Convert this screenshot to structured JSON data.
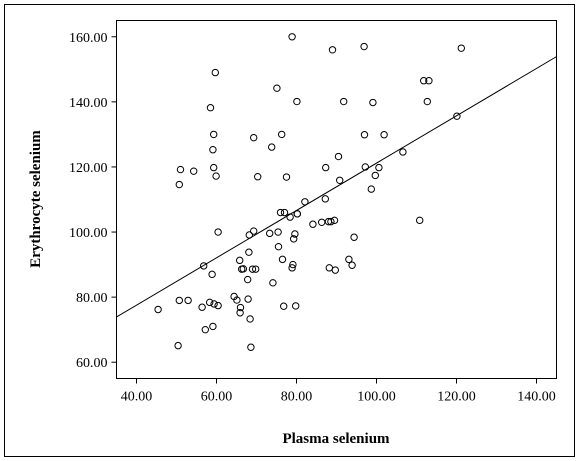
{
  "chart_data": {
    "type": "scatter",
    "title": "",
    "xlabel": "Plasma selenium",
    "ylabel": "Erythrocyte selenium",
    "xlim": [
      35,
      145
    ],
    "ylim": [
      55,
      165
    ],
    "x_ticks": [
      40,
      60,
      80,
      100,
      120,
      140
    ],
    "y_ticks": [
      60,
      80,
      100,
      120,
      140,
      160
    ],
    "x_tick_labels": [
      "40.00",
      "60.00",
      "80.00",
      "100.00",
      "120.00",
      "140.00"
    ],
    "y_tick_labels": [
      "60.00",
      "80.00",
      "100.00",
      "120.00",
      "140.00",
      "160.00"
    ],
    "grid": false,
    "legend": "none",
    "marker_color": "#000000",
    "fit_line": {
      "x": [
        35,
        145
      ],
      "y": [
        73.9,
        153.9
      ]
    },
    "points": {
      "x": [
        45.4,
        50.4,
        50.7,
        50.7,
        51.0,
        52.9,
        54.3,
        56.4,
        56.8,
        57.2,
        58.3,
        58.5,
        58.9,
        59.1,
        59.1,
        59.3,
        59.3,
        59.4,
        59.7,
        59.9,
        60.4,
        60.4,
        64.4,
        65.1,
        65.8,
        65.9,
        66.0,
        66.3,
        66.7,
        67.8,
        67.9,
        68.1,
        68.2,
        68.4,
        68.6,
        69.0,
        69.3,
        69.3,
        69.8,
        70.3,
        73.3,
        73.8,
        74.1,
        75.1,
        75.4,
        75.5,
        76.0,
        76.3,
        76.5,
        76.8,
        77.0,
        77.5,
        78.4,
        78.9,
        78.9,
        79.1,
        79.3,
        79.6,
        79.8,
        80.1,
        80.2,
        80.2,
        82.1,
        84.1,
        86.3,
        87.2,
        87.3,
        88.0,
        88.2,
        88.6,
        89.0,
        89.5,
        89.7,
        90.5,
        90.8,
        91.8,
        93.1,
        93.9,
        94.4,
        96.9,
        97.0,
        97.2,
        98.7,
        99.1,
        99.7,
        100.6,
        101.9,
        106.6,
        110.8,
        111.8,
        112.7,
        113.1,
        120.1,
        121.2
      ],
      "y": [
        76.2,
        65.1,
        114.6,
        79.0,
        119.2,
        79.0,
        118.7,
        76.9,
        89.6,
        70.0,
        78.4,
        138.2,
        87.0,
        71.0,
        125.3,
        119.8,
        130.0,
        77.9,
        149.0,
        117.2,
        100.0,
        77.4,
        80.2,
        79.1,
        91.3,
        75.2,
        76.8,
        88.6,
        88.7,
        85.4,
        79.4,
        93.8,
        99.1,
        73.3,
        64.6,
        88.6,
        100.3,
        129.0,
        88.6,
        117.0,
        99.6,
        126.1,
        84.4,
        144.2,
        100.0,
        95.5,
        106.0,
        130.0,
        91.6,
        77.2,
        106.0,
        116.9,
        104.6,
        160.0,
        89.0,
        90.0,
        97.9,
        99.4,
        77.3,
        140.1,
        105.6,
        105.6,
        109.3,
        102.4,
        103.0,
        110.2,
        119.8,
        103.2,
        89.0,
        103.2,
        156.0,
        103.6,
        88.3,
        123.2,
        115.9,
        140.1,
        91.6,
        89.8,
        98.4,
        157.0,
        129.9,
        120.0,
        113.2,
        139.8,
        117.4,
        119.8,
        129.9,
        124.6,
        103.6,
        146.5,
        140.1,
        146.5,
        135.6,
        156.5
      ]
    }
  }
}
